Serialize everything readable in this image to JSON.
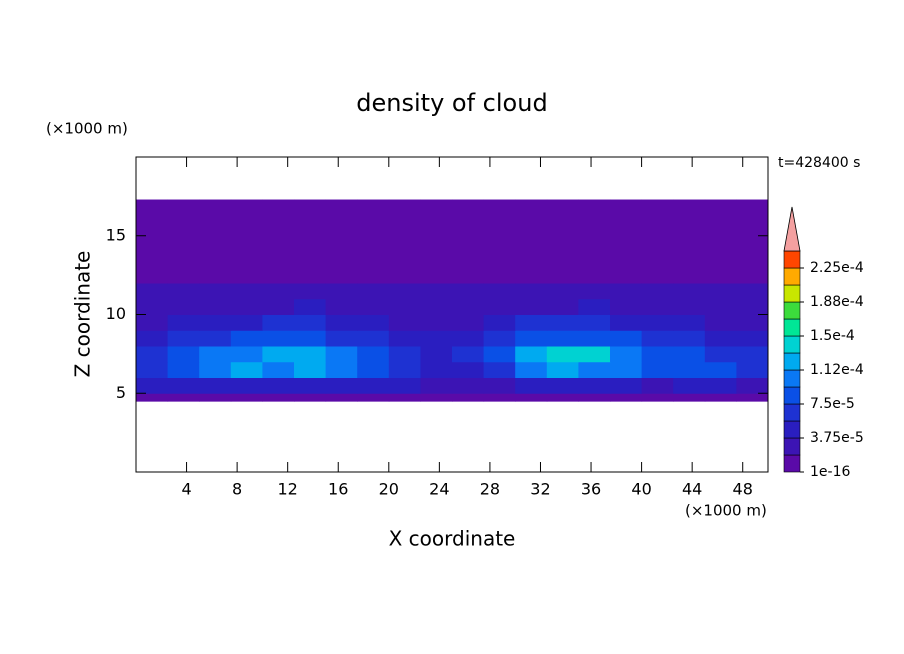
{
  "chart_data": {
    "type": "contour",
    "title": "density of cloud",
    "x_label": "X coordinate",
    "y_label": "Z coordinate",
    "x_unit": "(×1000 m)",
    "y_unit": "(×1000 m)",
    "annotation": "t=428400 s",
    "xlim": [
      0,
      50
    ],
    "ylim": [
      0,
      20
    ],
    "xticks": [
      4,
      8,
      12,
      16,
      20,
      24,
      28,
      32,
      36,
      40,
      44,
      48
    ],
    "yticks": [
      5,
      10,
      15
    ],
    "x_edges": [
      0,
      2.5,
      5,
      7.5,
      10,
      12.5,
      15,
      17.5,
      20,
      22.5,
      25,
      27.5,
      30,
      32.5,
      35,
      37.5,
      40,
      42.5,
      45,
      47.5,
      50
    ],
    "z_edges": [
      4.5,
      5,
      6,
      7,
      8,
      9,
      10,
      11,
      12,
      17.3
    ],
    "field": [
      [
        1e-05,
        1e-05,
        1e-05,
        1e-05,
        1e-05,
        1e-05,
        1e-05,
        1e-05,
        1e-05,
        1e-05,
        1e-05,
        1e-05,
        1e-05,
        1e-05,
        1e-05,
        1e-05,
        1e-05,
        1e-05,
        1e-05,
        1e-05
      ],
      [
        4e-05,
        4.5e-05,
        5e-05,
        4.5e-05,
        4e-05,
        4.5e-05,
        4e-05,
        4.5e-05,
        4e-05,
        3.5e-05,
        3e-05,
        3.5e-05,
        4e-05,
        4.5e-05,
        4e-05,
        4e-05,
        3.5e-05,
        4e-05,
        4e-05,
        3.5e-05
      ],
      [
        7e-05,
        9e-05,
        0.00011,
        0.000115,
        0.00011,
        0.000115,
        0.0001,
        8e-05,
        7e-05,
        5e-05,
        5e-05,
        7e-05,
        0.00011,
        0.000115,
        0.00011,
        0.0001,
        9e-05,
        8e-05,
        8e-05,
        7e-05
      ],
      [
        6e-05,
        8e-05,
        0.0001,
        0.00011,
        0.000115,
        0.00013,
        0.00011,
        8e-05,
        6e-05,
        5e-05,
        6e-05,
        9e-05,
        0.00012,
        0.000145,
        0.000135,
        0.00011,
        9e-05,
        8e-05,
        7e-05,
        6e-05
      ],
      [
        5e-05,
        6e-05,
        7e-05,
        7.5e-05,
        8e-05,
        8.5e-05,
        7e-05,
        6e-05,
        5e-05,
        4.5e-05,
        5e-05,
        6e-05,
        8e-05,
        9e-05,
        8.5e-05,
        8e-05,
        7e-05,
        6e-05,
        5e-05,
        4.5e-05
      ],
      [
        3e-05,
        4e-05,
        4.5e-05,
        5e-05,
        6e-05,
        6.5e-05,
        4e-05,
        4e-05,
        3.5e-05,
        3e-05,
        3.5e-05,
        4e-05,
        6e-05,
        7e-05,
        6e-05,
        5e-05,
        4e-05,
        4e-05,
        3.5e-05,
        3e-05
      ],
      [
        2.5e-05,
        3e-05,
        2.5e-05,
        3e-05,
        3.5e-05,
        4e-05,
        3e-05,
        2.5e-05,
        3e-05,
        2.5e-05,
        2.5e-05,
        3e-05,
        3e-05,
        3.5e-05,
        4e-05,
        3e-05,
        2.5e-05,
        3e-05,
        2.5e-05,
        2.5e-05
      ],
      [
        2.2e-05,
        2.2e-05,
        2.2e-05,
        2.2e-05,
        2.2e-05,
        2.2e-05,
        2.2e-05,
        2.2e-05,
        2.2e-05,
        2.2e-05,
        2.2e-05,
        2.2e-05,
        2.2e-05,
        2.2e-05,
        2.2e-05,
        2.2e-05,
        2.2e-05,
        2.2e-05,
        2.2e-05,
        2.2e-05
      ],
      [
        5e-06,
        5e-06,
        5e-06,
        5e-06,
        5e-06,
        5e-06,
        5e-06,
        5e-06,
        5e-06,
        5e-06,
        5e-06,
        5e-06,
        5e-06,
        5e-06,
        5e-06,
        5e-06,
        5e-06,
        5e-06,
        5e-06,
        5e-06
      ]
    ],
    "levels": [
      1e-16,
      1.875e-05,
      3.75e-05,
      5.625e-05,
      7.5e-05,
      9.375e-05,
      0.0001125,
      0.00013125,
      0.00015,
      0.00016875,
      0.0001875,
      0.00020625,
      0.000225
    ],
    "colors": [
      "#5a0aa8",
      "#3c14b4",
      "#2a1ec0",
      "#1e32d2",
      "#0a50e6",
      "#0a78f5",
      "#00aaf0",
      "#00d2d2",
      "#00e696",
      "#3cdc3c",
      "#c8e600",
      "#ffaa00",
      "#ff4600"
    ],
    "extend_color": "#f4a0a0",
    "colorbar_ticks": [
      1e-16,
      {
        "value": 3.75e-05,
        "label": "3.75e-5"
      },
      {
        "value": 7.5e-05,
        "label": "7.5e-5"
      },
      {
        "value": 0.0001125,
        "label": "1.12e-4"
      },
      {
        "value": 0.00015,
        "label": "1.5e-4"
      },
      {
        "value": 0.0001875,
        "label": "1.88e-4"
      },
      {
        "value": 0.000225,
        "label": "2.25e-4"
      }
    ]
  }
}
